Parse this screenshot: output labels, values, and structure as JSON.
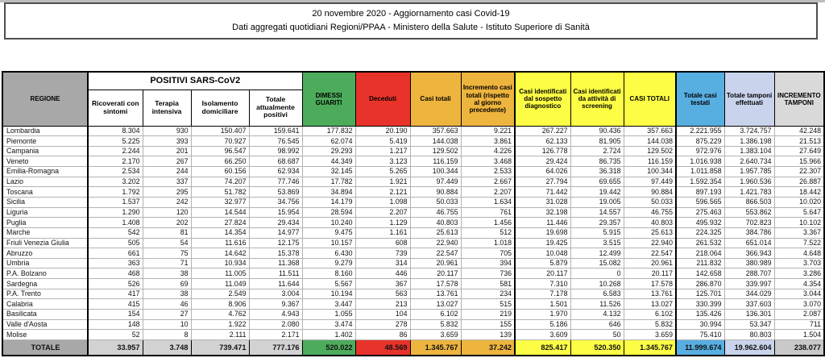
{
  "title": {
    "line1": "20 novembre 2020 - Aggiornamento casi Covid-19",
    "line2": "Dati aggregati quotidiani Regioni/PPAA - Ministero della Salute - Istituto Superiore di Sanità"
  },
  "colors": {
    "header_gray": "#a8a8a8",
    "green_dimessi": "#4dac5c",
    "red_deceduti": "#e8332a",
    "orange_casi": "#edb43e",
    "yellow_identificati": "#fdfd45",
    "blue_testati": "#57aee1",
    "periwinkle_tamponi": "#c9d3eb",
    "light_gray": "#d9d9d9"
  },
  "table": {
    "group_header": "POSITIVI SARS-CoV2",
    "headers": [
      "REGIONE",
      "Ricoverati con sintomi",
      "Terapia intensiva",
      "Isolamento domiciliare",
      "Totale attualmente positivi",
      "DIMESSI GUARITI",
      "Deceduti",
      "Casi totali",
      "Incremento casi totali (rispetto al giorno precedente)",
      "Casi identificati dal sospetto diagnostico",
      "Casi identificati da attività di screening",
      "CASI TOTALI",
      "Totale casi testati",
      "Totale tamponi effettuati",
      "INCREMENTO TAMPONI"
    ],
    "rows": [
      [
        "Lombardia",
        "8.304",
        "930",
        "150.407",
        "159.641",
        "177.832",
        "20.190",
        "357.663",
        "9.221",
        "267.227",
        "90.436",
        "357.663",
        "2.221.955",
        "3.724.757",
        "42.248"
      ],
      [
        "Piemonte",
        "5.225",
        "393",
        "70.927",
        "76.545",
        "62.074",
        "5.419",
        "144.038",
        "3.861",
        "62.133",
        "81.905",
        "144.038",
        "875.229",
        "1.386.198",
        "21.513"
      ],
      [
        "Campania",
        "2.244",
        "201",
        "96.547",
        "98.992",
        "29.293",
        "1.217",
        "129.502",
        "4.226",
        "126.778",
        "2.724",
        "129.502",
        "972.976",
        "1.383.104",
        "27.649"
      ],
      [
        "Veneto",
        "2.170",
        "267",
        "66.250",
        "68.687",
        "44.349",
        "3.123",
        "116.159",
        "3.468",
        "29.424",
        "86.735",
        "116.159",
        "1.016.938",
        "2.640.734",
        "15.966"
      ],
      [
        "Emilia-Romagna",
        "2.534",
        "244",
        "60.156",
        "62.934",
        "32.145",
        "5.265",
        "100.344",
        "2.533",
        "64.026",
        "36.318",
        "100.344",
        "1.011.858",
        "1.957.785",
        "22.307"
      ],
      [
        "Lazio",
        "3.202",
        "337",
        "74.207",
        "77.746",
        "17.782",
        "1.921",
        "97.449",
        "2.667",
        "27.794",
        "69.655",
        "97.449",
        "1.592.354",
        "1.960.536",
        "26.887"
      ],
      [
        "Toscana",
        "1.792",
        "295",
        "51.782",
        "53.869",
        "34.894",
        "2.121",
        "90.884",
        "2.207",
        "71.442",
        "19.442",
        "90.884",
        "897.193",
        "1.421.783",
        "18.442"
      ],
      [
        "Sicilia",
        "1.537",
        "242",
        "32.977",
        "34.756",
        "14.179",
        "1.098",
        "50.033",
        "1.634",
        "31.028",
        "19.005",
        "50.033",
        "596.565",
        "866.503",
        "10.020"
      ],
      [
        "Liguria",
        "1.290",
        "120",
        "14.544",
        "15.954",
        "28.594",
        "2.207",
        "46.755",
        "761",
        "32.198",
        "14.557",
        "46.755",
        "275.463",
        "553.862",
        "5.647"
      ],
      [
        "Puglia",
        "1.408",
        "202",
        "27.824",
        "29.434",
        "10.240",
        "1.129",
        "40.803",
        "1.456",
        "11.446",
        "29.357",
        "40.803",
        "495.932",
        "702.823",
        "10.102"
      ],
      [
        "Marche",
        "542",
        "81",
        "14.354",
        "14.977",
        "9.475",
        "1.161",
        "25.613",
        "512",
        "19.698",
        "5.915",
        "25.613",
        "224.325",
        "384.786",
        "3.367"
      ],
      [
        "Friuli Venezia Giulia",
        "505",
        "54",
        "11.616",
        "12.175",
        "10.157",
        "608",
        "22.940",
        "1.018",
        "19.425",
        "3.515",
        "22.940",
        "261.532",
        "651.014",
        "7.522"
      ],
      [
        "Abruzzo",
        "661",
        "75",
        "14.642",
        "15.378",
        "6.430",
        "739",
        "22.547",
        "705",
        "10.048",
        "12.499",
        "22.547",
        "218.064",
        "366.943",
        "4.648"
      ],
      [
        "Umbria",
        "363",
        "71",
        "10.934",
        "11.368",
        "9.279",
        "314",
        "20.961",
        "394",
        "5.879",
        "15.082",
        "20.961",
        "211.832",
        "380.989",
        "3.703"
      ],
      [
        "P.A. Bolzano",
        "468",
        "38",
        "11.005",
        "11.511",
        "8.160",
        "446",
        "20.117",
        "736",
        "20.117",
        "0",
        "20.117",
        "142.658",
        "288.707",
        "3.286"
      ],
      [
        "Sardegna",
        "526",
        "69",
        "11.049",
        "11.644",
        "5.567",
        "367",
        "17.578",
        "581",
        "7.310",
        "10.268",
        "17.578",
        "286.870",
        "339.997",
        "4.354"
      ],
      [
        "P.A. Trento",
        "417",
        "38",
        "2.549",
        "3.004",
        "10.194",
        "563",
        "13.761",
        "234",
        "7.178",
        "6.583",
        "13.761",
        "125.701",
        "344.029",
        "3.044"
      ],
      [
        "Calabria",
        "415",
        "46",
        "8.906",
        "9.367",
        "3.447",
        "213",
        "13.027",
        "515",
        "1.501",
        "11.526",
        "13.027",
        "330.399",
        "337.603",
        "3.070"
      ],
      [
        "Basilicata",
        "154",
        "27",
        "4.762",
        "4.943",
        "1.055",
        "104",
        "6.102",
        "219",
        "1.970",
        "4.132",
        "6.102",
        "135.426",
        "136.301",
        "2.087"
      ],
      [
        "Valle d'Aosta",
        "148",
        "10",
        "1.922",
        "2.080",
        "3.474",
        "278",
        "5.832",
        "155",
        "5.186",
        "646",
        "5.832",
        "30.994",
        "53.347",
        "711"
      ],
      [
        "Molise",
        "52",
        "8",
        "2.111",
        "2.171",
        "1.402",
        "86",
        "3.659",
        "139",
        "3.609",
        "50",
        "3.659",
        "75.410",
        "80.803",
        "1.504"
      ]
    ],
    "total_row": [
      "TOTALE",
      "33.957",
      "3.748",
      "739.471",
      "777.176",
      "520.022",
      "48.569",
      "1.345.767",
      "37.242",
      "825.417",
      "520.350",
      "1.345.767",
      "11.999.674",
      "19.962.604",
      "238.077"
    ]
  }
}
